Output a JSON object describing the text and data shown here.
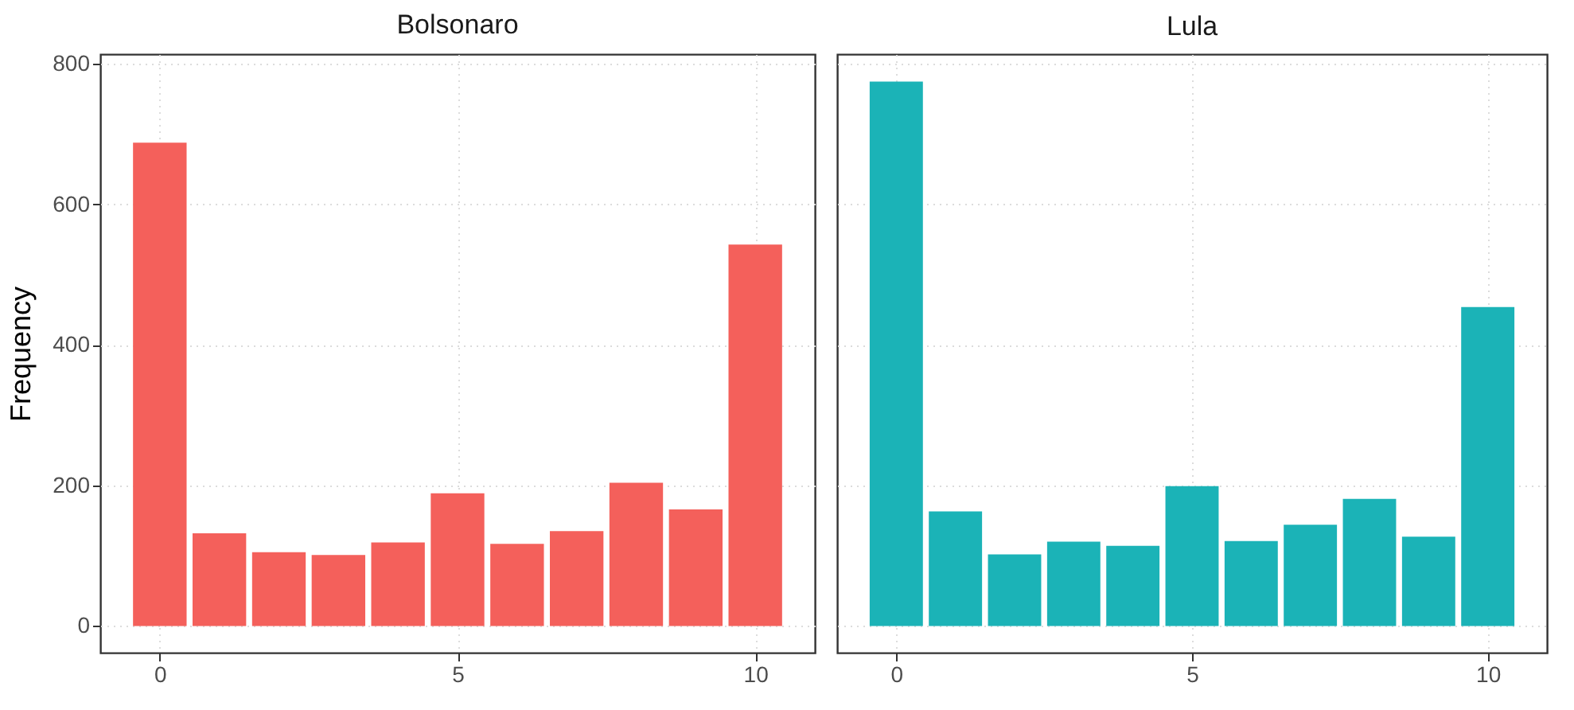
{
  "chart_data": [
    {
      "type": "bar",
      "title": "Bolsonaro",
      "ylabel": "Frequency",
      "x": [
        0,
        1,
        2,
        3,
        4,
        5,
        6,
        7,
        8,
        9,
        10
      ],
      "series": [
        {
          "color": "#f4605b",
          "values": [
            688,
            132,
            105,
            101,
            119,
            189,
            117,
            135,
            204,
            166,
            543
          ]
        }
      ],
      "xlim": [
        -1,
        11
      ],
      "xticks": [
        0,
        5,
        10
      ],
      "ylim": [
        -38,
        814
      ],
      "yticks": [
        0,
        200,
        400,
        600,
        800
      ],
      "grid": true
    },
    {
      "type": "bar",
      "title": "Lula",
      "x": [
        0,
        1,
        2,
        3,
        4,
        5,
        6,
        7,
        8,
        9,
        10
      ],
      "series": [
        {
          "color": "#1bb3b7",
          "values": [
            775,
            163,
            102,
            120,
            114,
            199,
            121,
            144,
            181,
            127,
            454
          ]
        }
      ],
      "xlim": [
        -1,
        11
      ],
      "xticks": [
        0,
        5,
        10
      ],
      "ylim": [
        -38,
        814
      ],
      "yticks": [
        0,
        200,
        400,
        600,
        800
      ],
      "grid": true,
      "tick_labels": "x"
    }
  ]
}
